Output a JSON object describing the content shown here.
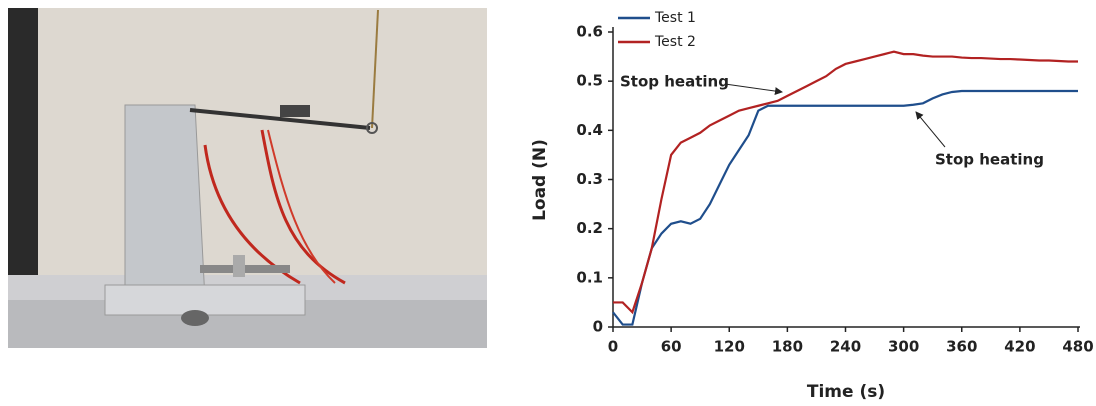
{
  "chart_data": {
    "type": "line",
    "xlabel": "Time (s)",
    "ylabel": "Load (N)",
    "x": [
      0,
      10,
      20,
      30,
      40,
      50,
      60,
      70,
      80,
      90,
      100,
      110,
      120,
      130,
      140,
      150,
      160,
      170,
      180,
      190,
      200,
      210,
      220,
      230,
      240,
      250,
      260,
      270,
      280,
      290,
      300,
      310,
      320,
      330,
      340,
      350,
      360,
      370,
      380,
      390,
      400,
      410,
      420,
      430,
      440,
      450,
      460,
      470,
      480
    ],
    "series": [
      {
        "name": "Test 1",
        "color": "#1f4e8c",
        "values": [
          0.03,
          0.005,
          0.005,
          0.09,
          0.16,
          0.19,
          0.21,
          0.215,
          0.21,
          0.22,
          0.25,
          0.29,
          0.33,
          0.36,
          0.39,
          0.44,
          0.45,
          0.45,
          0.45,
          0.45,
          0.45,
          0.45,
          0.45,
          0.45,
          0.45,
          0.45,
          0.45,
          0.45,
          0.45,
          0.45,
          0.45,
          0.452,
          0.455,
          0.465,
          0.473,
          0.478,
          0.48,
          0.48,
          0.48,
          0.48,
          0.48,
          0.48,
          0.48,
          0.48,
          0.48,
          0.48,
          0.48,
          0.48,
          0.48
        ]
      },
      {
        "name": "Test 2",
        "color": "#b22222",
        "values": [
          0.05,
          0.05,
          0.03,
          0.09,
          0.16,
          0.26,
          0.35,
          0.375,
          0.385,
          0.395,
          0.41,
          0.42,
          0.43,
          0.44,
          0.445,
          0.45,
          0.455,
          0.46,
          0.47,
          0.48,
          0.49,
          0.5,
          0.51,
          0.525,
          0.535,
          0.54,
          0.545,
          0.55,
          0.555,
          0.56,
          0.555,
          0.555,
          0.552,
          0.55,
          0.55,
          0.55,
          0.548,
          0.547,
          0.547,
          0.546,
          0.545,
          0.545,
          0.544,
          0.543,
          0.542,
          0.542,
          0.541,
          0.54,
          0.54
        ]
      }
    ],
    "annotations": [
      "Stop heating",
      "Stop heating"
    ],
    "xlim": [
      0,
      480
    ],
    "xticks": [
      0,
      60,
      120,
      180,
      240,
      300,
      360,
      420,
      480
    ],
    "ylim": [
      0,
      0.6
    ],
    "yticks": [
      0,
      0.1,
      0.2,
      0.3,
      0.4,
      0.5,
      0.6
    ],
    "legend": "upper left"
  }
}
